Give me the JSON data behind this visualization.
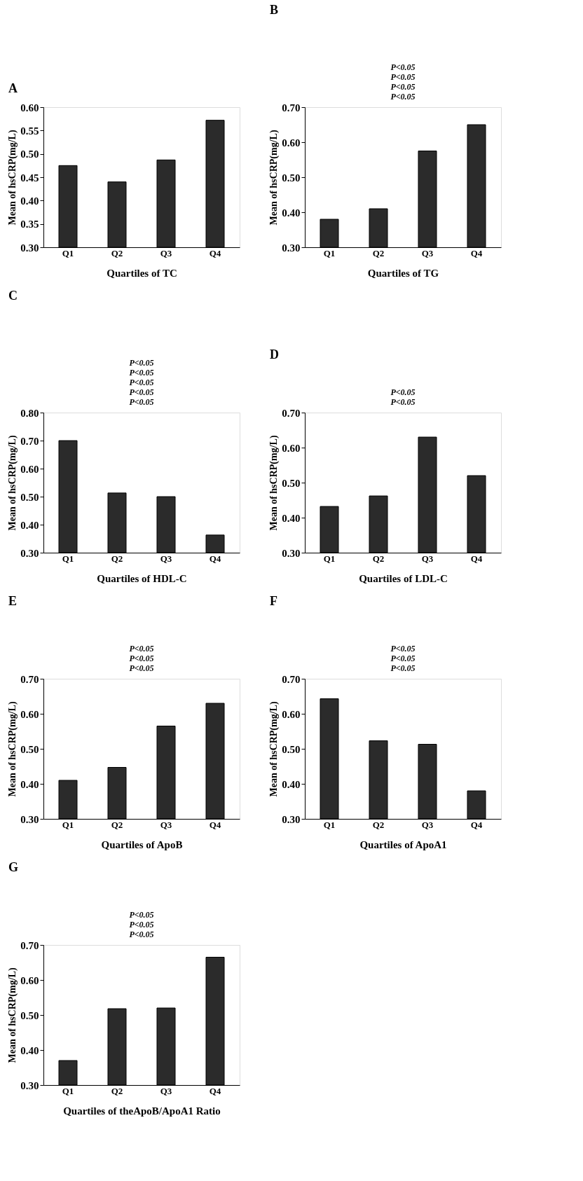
{
  "chart_data": [
    {
      "type": "bar",
      "title": "A",
      "xlabel": "Quartiles of TC",
      "ylabel": "Mean of hsCRP(mg/L)",
      "categories": [
        "Q1",
        "Q2",
        "Q3",
        "Q4"
      ],
      "values": [
        0.475,
        0.44,
        0.487,
        0.572
      ],
      "color": "#2b2b2b",
      "ylim": [
        0.3,
        0.6
      ],
      "yticks": [
        {
          "value": 0.3,
          "label": "0.30"
        },
        {
          "value": 0.35,
          "label": "0.35"
        },
        {
          "value": 0.4,
          "label": "0.40"
        },
        {
          "value": 0.45,
          "label": "0.45"
        },
        {
          "value": 0.5,
          "label": "0.50"
        },
        {
          "value": 0.55,
          "label": "0.55"
        },
        {
          "value": 0.6,
          "label": "0.60"
        }
      ],
      "grid": false
    },
    {
      "type": "bar",
      "title": "B",
      "xlabel": "Quartiles of TG",
      "ylabel": "Mean of hsCRP(mg/L)",
      "categories": [
        "Q1",
        "Q2",
        "Q3",
        "Q4"
      ],
      "values": [
        0.38,
        0.41,
        0.575,
        0.65
      ],
      "color": "#2b2b2b",
      "ylim": [
        0.3,
        0.7
      ],
      "yticks": [
        {
          "value": 0.3,
          "label": "0.30"
        },
        {
          "value": 0.4,
          "label": "0.40"
        },
        {
          "value": 0.5,
          "label": "0.50"
        },
        {
          "value": 0.6,
          "label": "0.60"
        },
        {
          "value": 0.7,
          "label": "0.70"
        }
      ],
      "grid": false,
      "annotations": [
        "P<0.05",
        "P<0.05",
        "P<0.05",
        "P<0.05"
      ]
    },
    {
      "type": "bar",
      "title": "C",
      "xlabel": "Quartiles of HDL-C",
      "ylabel": "Mean of hsCRP(mg/L)",
      "categories": [
        "Q1",
        "Q2",
        "Q3",
        "Q4"
      ],
      "values": [
        0.7,
        0.513,
        0.5,
        0.363
      ],
      "color": "#2b2b2b",
      "ylim": [
        0.3,
        0.8
      ],
      "yticks": [
        {
          "value": 0.3,
          "label": "0.30"
        },
        {
          "value": 0.4,
          "label": "0.40"
        },
        {
          "value": 0.5,
          "label": "0.50"
        },
        {
          "value": 0.6,
          "label": "0.60"
        },
        {
          "value": 0.7,
          "label": "0.70"
        },
        {
          "value": 0.8,
          "label": "0.80"
        }
      ],
      "grid": false,
      "annotations": [
        "P<0.05",
        "P<0.05",
        "P<0.05",
        "P<0.05",
        "P<0.05"
      ]
    },
    {
      "type": "bar",
      "title": "D",
      "xlabel": "Quartiles of LDL-C",
      "ylabel": "Mean of hsCRP(mg/L)",
      "categories": [
        "Q1",
        "Q2",
        "Q3",
        "Q4"
      ],
      "values": [
        0.432,
        0.462,
        0.63,
        0.52
      ],
      "color": "#2b2b2b",
      "ylim": [
        0.3,
        0.7
      ],
      "yticks": [
        {
          "value": 0.3,
          "label": "0.30"
        },
        {
          "value": 0.4,
          "label": "0.40"
        },
        {
          "value": 0.5,
          "label": "0.50"
        },
        {
          "value": 0.6,
          "label": "0.60"
        },
        {
          "value": 0.7,
          "label": "0.70"
        }
      ],
      "grid": false,
      "annotations": [
        "P<0.05",
        "P<0.05"
      ]
    },
    {
      "type": "bar",
      "title": "E",
      "xlabel": "Quartiles of ApoB",
      "ylabel": "Mean of hsCRP(mg/L)",
      "categories": [
        "Q1",
        "Q2",
        "Q3",
        "Q4"
      ],
      "values": [
        0.41,
        0.447,
        0.565,
        0.63
      ],
      "color": "#2b2b2b",
      "ylim": [
        0.3,
        0.7
      ],
      "yticks": [
        {
          "value": 0.3,
          "label": "0.30"
        },
        {
          "value": 0.4,
          "label": "0.40"
        },
        {
          "value": 0.5,
          "label": "0.50"
        },
        {
          "value": 0.6,
          "label": "0.60"
        },
        {
          "value": 0.7,
          "label": "0.70"
        }
      ],
      "grid": false,
      "annotations": [
        "P<0.05",
        "P<0.05",
        "P<0.05"
      ]
    },
    {
      "type": "bar",
      "title": "F",
      "xlabel": "Quartiles of  ApoA1",
      "ylabel": "Mean of hsCRP(mg/L)",
      "categories": [
        "Q1",
        "Q2",
        "Q3",
        "Q4"
      ],
      "values": [
        0.643,
        0.523,
        0.513,
        0.38
      ],
      "color": "#2b2b2b",
      "ylim": [
        0.3,
        0.7
      ],
      "yticks": [
        {
          "value": 0.3,
          "label": "0.30"
        },
        {
          "value": 0.4,
          "label": "0.40"
        },
        {
          "value": 0.5,
          "label": "0.50"
        },
        {
          "value": 0.6,
          "label": "0.60"
        },
        {
          "value": 0.7,
          "label": "0.70"
        }
      ],
      "grid": false,
      "annotations": [
        "P<0.05",
        "P<0.05",
        "P<0.05"
      ]
    },
    {
      "type": "bar",
      "title": "G",
      "xlabel": "Quartiles of theApoB/ApoA1 Ratio",
      "ylabel": "Mean of hsCRP(mg/L)",
      "categories": [
        "Q1",
        "Q2",
        "Q3",
        "Q4"
      ],
      "values": [
        0.37,
        0.518,
        0.52,
        0.665
      ],
      "color": "#2b2b2b",
      "ylim": [
        0.3,
        0.7
      ],
      "yticks": [
        {
          "value": 0.3,
          "label": "0.30"
        },
        {
          "value": 0.4,
          "label": "0.40"
        },
        {
          "value": 0.5,
          "label": "0.50"
        },
        {
          "value": 0.6,
          "label": "0.60"
        },
        {
          "value": 0.7,
          "label": "0.70"
        }
      ],
      "grid": false,
      "annotations": [
        "P<0.05",
        "P<0.05",
        "P<0.05"
      ]
    }
  ]
}
